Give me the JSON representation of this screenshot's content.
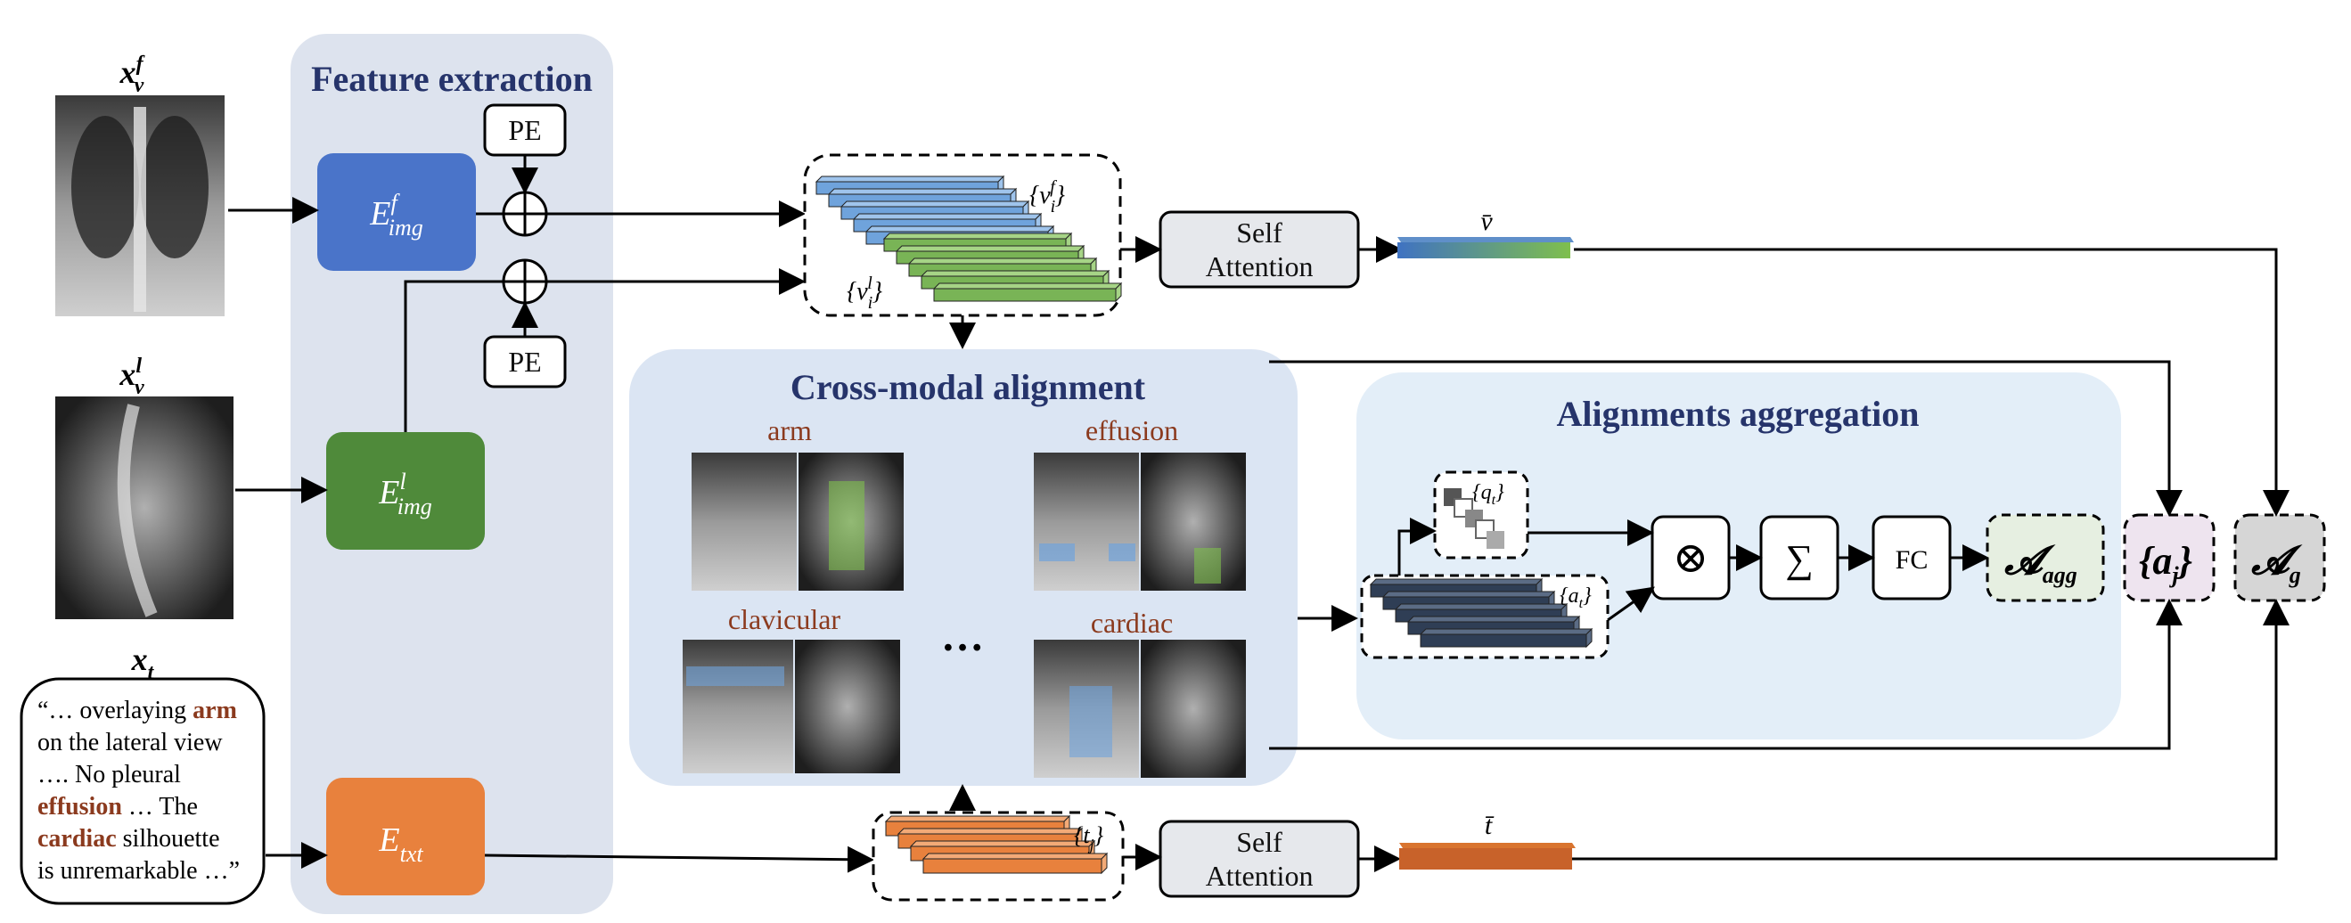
{
  "inputs": {
    "frontal_label": "x",
    "frontal_sup": "f",
    "frontal_sub": "v",
    "lateral_label": "x",
    "lateral_sup": "l",
    "lateral_sub": "v",
    "text_label": "x",
    "text_sub": "t",
    "report_lines": [
      {
        "pre": "“… overlaying ",
        "kw": "arm",
        "post": ""
      },
      {
        "pre": "on the lateral view",
        "kw": "",
        "post": ""
      },
      {
        "pre": "…. No pleural",
        "kw": "",
        "post": ""
      },
      {
        "pre": "",
        "kw": "effusion",
        "post": " … The"
      },
      {
        "pre": "",
        "kw": "cardiac",
        "post": " silhouette"
      },
      {
        "pre": "is unremarkable …”",
        "kw": "",
        "post": ""
      }
    ]
  },
  "feature_extraction": {
    "title": "Feature extraction",
    "pe_top": "PE",
    "pe_bottom": "PE",
    "enc_front": {
      "base": "E",
      "sup": "f",
      "sub": "img"
    },
    "enc_lateral": {
      "base": "E",
      "sup": "l",
      "sub": "img"
    },
    "enc_text": {
      "base": "E",
      "sub": "txt"
    }
  },
  "visual_tokens": {
    "front_label": "{v",
    "front_sub": "i",
    "front_sup": "f",
    "lateral_label": "{v",
    "lateral_sub": "i",
    "lateral_sup": "l"
  },
  "text_tokens": {
    "label": "{t",
    "sub": "j"
  },
  "self_attention_top": {
    "line1": "Self",
    "line2": "Attention"
  },
  "self_attention_bottom": {
    "line1": "Self",
    "line2": "Attention"
  },
  "v_bar": "v̄",
  "t_bar": "t̄",
  "cross_modal": {
    "title": "Cross-modal alignment",
    "items": [
      "arm",
      "effusion",
      "clavicular",
      "cardiac"
    ],
    "ellipsis": "…"
  },
  "aggregation": {
    "title": "Alignments aggregation",
    "q_label": "{q",
    "q_sub": "t",
    "a_label": "{a",
    "a_sub": "t",
    "otimes": "⊗",
    "sum": "∑",
    "fc": "FC",
    "agg_base": "𝓐",
    "agg_sub": "agg"
  },
  "outputs": {
    "aj_label": "{a",
    "aj_sub": "j",
    "ag_base": "𝓐",
    "ag_sub": "g"
  },
  "colors": {
    "panel": "#dde3ee",
    "cross_panel": "#dbe5f3",
    "agg_panel": "#e3eef8",
    "enc_blue": "#4a74c9",
    "enc_green": "#4f8a3a",
    "enc_orange": "#e8813d",
    "token_blue": "#6fa3dc",
    "token_green": "#79b456",
    "token_orange": "#e8813d",
    "token_dark": "#2f3e55"
  }
}
